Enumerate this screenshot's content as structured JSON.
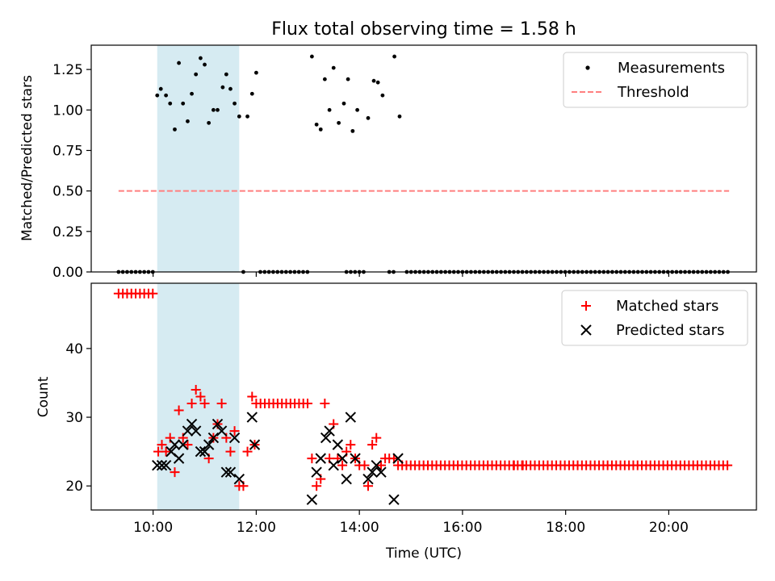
{
  "chart_data": {
    "type": "scatter",
    "title": "Flux total observing time = 1.58 h",
    "xlabel": "Time (UTC)",
    "x_unit": "hours (UTC)",
    "xlim": [
      8.8,
      21.7
    ],
    "x_ticks": [
      10,
      12,
      14,
      16,
      18,
      20
    ],
    "x_tick_labels": [
      "10:00",
      "12:00",
      "14:00",
      "16:00",
      "18:00",
      "20:00"
    ],
    "shaded_interval": {
      "start": 10.08,
      "end": 11.67,
      "color": "#add8e6"
    },
    "panels": [
      {
        "id": "ratio",
        "ylabel": "Matched/Predicted stars",
        "ylim": [
          0,
          1.4
        ],
        "y_ticks": [
          0,
          0.25,
          0.5,
          0.75,
          1.0,
          1.25
        ],
        "y_tick_labels": [
          "0.00",
          "0.25",
          "0.50",
          "0.75",
          "1.00",
          "1.25"
        ],
        "legend": {
          "position": "top-right",
          "entries": [
            "Measurements",
            "Threshold"
          ]
        },
        "threshold": {
          "name": "Threshold",
          "y": 0.5,
          "x_start": 9.33,
          "x_end": 21.17,
          "color": "#ff7f7f"
        },
        "measurements": {
          "name": "Measurements",
          "color": "#000000",
          "points": [
            [
              10.08,
              1.09
            ],
            [
              10.15,
              1.13
            ],
            [
              10.25,
              1.09
            ],
            [
              10.33,
              1.04
            ],
            [
              10.42,
              0.88
            ],
            [
              10.5,
              1.29
            ],
            [
              10.58,
              1.04
            ],
            [
              10.67,
              0.93
            ],
            [
              10.75,
              1.1
            ],
            [
              10.83,
              1.22
            ],
            [
              10.92,
              1.32
            ],
            [
              11.0,
              1.28
            ],
            [
              11.08,
              0.92
            ],
            [
              11.17,
              1.0
            ],
            [
              11.25,
              1.0
            ],
            [
              11.35,
              1.14
            ],
            [
              11.42,
              1.22
            ],
            [
              11.5,
              1.13
            ],
            [
              11.58,
              1.04
            ],
            [
              11.67,
              0.96
            ],
            [
              11.92,
              1.1
            ],
            [
              12.0,
              1.23
            ],
            [
              11.83,
              0.96
            ],
            [
              13.08,
              1.33
            ],
            [
              13.17,
              0.91
            ],
            [
              13.25,
              0.88
            ],
            [
              13.33,
              1.19
            ],
            [
              13.42,
              1.0
            ],
            [
              13.5,
              1.26
            ],
            [
              13.6,
              0.92
            ],
            [
              13.7,
              1.04
            ],
            [
              13.78,
              1.19
            ],
            [
              13.87,
              0.87
            ],
            [
              13.96,
              1.0
            ],
            [
              14.17,
              0.95
            ],
            [
              14.28,
              1.18
            ],
            [
              14.36,
              1.17
            ],
            [
              14.45,
              1.09
            ],
            [
              14.68,
              1.33
            ],
            [
              14.78,
              0.96
            ]
          ],
          "zero_runs": [
            {
              "start": 9.33,
              "end": 10.0,
              "step": 0.083,
              "y": 0
            },
            {
              "start": 11.75,
              "end": 11.75,
              "step": 0.083,
              "y": 0
            },
            {
              "start": 12.08,
              "end": 13.0,
              "step": 0.083,
              "y": 0
            },
            {
              "start": 13.75,
              "end": 13.92,
              "step": 0.083,
              "y": 0
            },
            {
              "start": 14.0,
              "end": 14.08,
              "step": 0.083,
              "y": 0
            },
            {
              "start": 14.58,
              "end": 14.67,
              "step": 0.083,
              "y": 0
            },
            {
              "start": 14.92,
              "end": 21.17,
              "step": 0.083,
              "y": 0
            }
          ]
        }
      },
      {
        "id": "counts",
        "ylabel": "Count",
        "ylim": [
          16.5,
          49.5
        ],
        "y_ticks": [
          20,
          30,
          40
        ],
        "y_tick_labels": [
          "20",
          "30",
          "40"
        ],
        "legend": {
          "position": "top-right",
          "entries": [
            "Matched stars",
            "Predicted stars"
          ]
        },
        "matched": {
          "name": "Matched stars",
          "color": "#ff0000",
          "points": [
            [
              10.1,
              25
            ],
            [
              10.17,
              26
            ],
            [
              10.25,
              25
            ],
            [
              10.33,
              27
            ],
            [
              10.42,
              22
            ],
            [
              10.5,
              31
            ],
            [
              10.58,
              27
            ],
            [
              10.67,
              26
            ],
            [
              10.75,
              32
            ],
            [
              10.83,
              34
            ],
            [
              10.92,
              33
            ],
            [
              11.0,
              32
            ],
            [
              11.08,
              24
            ],
            [
              11.17,
              27
            ],
            [
              11.25,
              29
            ],
            [
              11.33,
              32
            ],
            [
              11.42,
              27
            ],
            [
              11.5,
              25
            ],
            [
              11.58,
              28
            ],
            [
              11.67,
              20
            ],
            [
              11.75,
              20
            ],
            [
              11.83,
              25
            ],
            [
              11.92,
              33
            ],
            [
              11.97,
              26
            ],
            [
              13.08,
              24
            ],
            [
              13.17,
              20
            ],
            [
              13.25,
              21
            ],
            [
              13.33,
              32
            ],
            [
              13.42,
              24
            ],
            [
              13.5,
              29
            ],
            [
              13.58,
              24
            ],
            [
              13.67,
              23
            ],
            [
              13.75,
              25
            ],
            [
              13.83,
              26
            ],
            [
              13.92,
              24
            ],
            [
              14.0,
              23
            ],
            [
              14.1,
              23
            ],
            [
              14.17,
              20
            ],
            [
              14.25,
              26
            ],
            [
              14.33,
              27
            ],
            [
              14.42,
              23
            ],
            [
              14.5,
              24
            ],
            [
              14.58,
              24
            ],
            [
              14.67,
              24
            ],
            [
              14.75,
              23
            ],
            [
              17.0,
              23
            ],
            [
              17.17,
              23
            ]
          ],
          "runs": [
            {
              "start": 9.33,
              "end": 10.0,
              "step": 0.083,
              "y": 48
            },
            {
              "start": 12.0,
              "end": 13.0,
              "step": 0.083,
              "y": 32
            },
            {
              "start": 14.83,
              "end": 21.17,
              "step": 0.083,
              "y": 23
            }
          ]
        },
        "predicted": {
          "name": "Predicted stars",
          "color": "#000000",
          "points": [
            [
              10.08,
              23
            ],
            [
              10.17,
              23
            ],
            [
              10.25,
              23
            ],
            [
              10.35,
              25
            ],
            [
              10.42,
              26
            ],
            [
              10.5,
              24
            ],
            [
              10.58,
              26
            ],
            [
              10.67,
              28
            ],
            [
              10.75,
              29
            ],
            [
              10.83,
              28
            ],
            [
              10.92,
              25
            ],
            [
              11.0,
              25
            ],
            [
              11.08,
              26
            ],
            [
              11.17,
              27
            ],
            [
              11.25,
              29
            ],
            [
              11.33,
              28
            ],
            [
              11.42,
              22
            ],
            [
              11.5,
              22
            ],
            [
              11.58,
              27
            ],
            [
              11.67,
              21
            ],
            [
              11.92,
              30
            ],
            [
              11.97,
              26
            ],
            [
              13.08,
              18
            ],
            [
              13.17,
              22
            ],
            [
              13.25,
              24
            ],
            [
              13.35,
              27
            ],
            [
              13.42,
              28
            ],
            [
              13.5,
              23
            ],
            [
              13.58,
              26
            ],
            [
              13.67,
              24
            ],
            [
              13.75,
              21
            ],
            [
              13.83,
              30
            ],
            [
              13.92,
              24
            ],
            [
              14.17,
              21
            ],
            [
              14.25,
              22
            ],
            [
              14.33,
              23
            ],
            [
              14.42,
              22
            ],
            [
              14.67,
              18
            ],
            [
              14.75,
              24
            ]
          ]
        }
      }
    ]
  }
}
